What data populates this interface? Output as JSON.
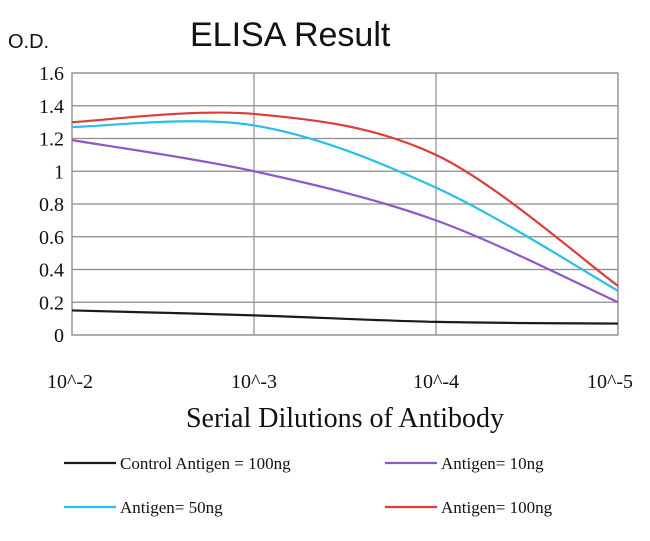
{
  "chart_data": {
    "type": "line",
    "title": "ELISA Result",
    "ylabel": "O.D.",
    "xlabel": "Serial Dilutions of Antibody",
    "ylim": [
      0,
      1.6
    ],
    "yticks": [
      "0",
      "0.2",
      "0.4",
      "0.6",
      "0.8",
      "1",
      "1.2",
      "1.4",
      "1.6"
    ],
    "xticks": [
      "10^-2",
      "10^-3",
      "10^-4",
      "10^-5"
    ],
    "x": [
      "10^-2",
      "10^-3",
      "10^-4",
      "10^-5"
    ],
    "grid": true,
    "legend_position": "bottom",
    "series": [
      {
        "name": "Control Antigen = 100ng",
        "color": "#1a1a1a",
        "values": [
          0.15,
          0.12,
          0.08,
          0.07
        ]
      },
      {
        "name": "Antigen= 10ng",
        "color": "#8e58c8",
        "values": [
          1.19,
          1.0,
          0.7,
          0.2
        ]
      },
      {
        "name": "Antigen= 50ng",
        "color": "#26c0ea",
        "values": [
          1.27,
          1.28,
          0.9,
          0.27
        ]
      },
      {
        "name": "Antigen= 100ng",
        "color": "#e03a3a",
        "values": [
          1.3,
          1.35,
          1.1,
          0.3
        ]
      }
    ]
  }
}
